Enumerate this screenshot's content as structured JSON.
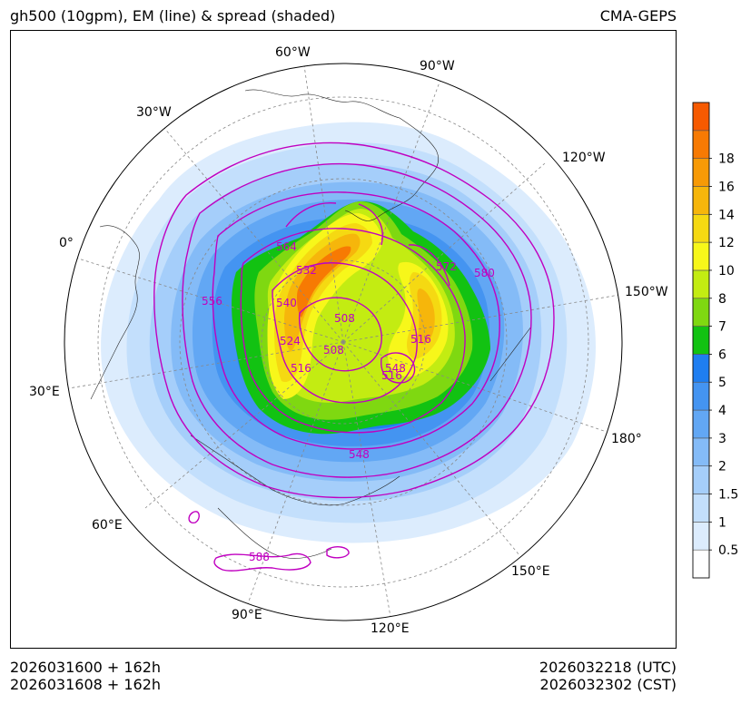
{
  "header": {
    "title": "gh500 (10gpm), EM (line) & spread (shaded)",
    "model": "CMA-GEPS"
  },
  "footer": {
    "init_utc": "2026031600 + 162h",
    "init_cst": "2026031608 + 162h",
    "valid_utc": "2026032218 (UTC)",
    "valid_cst": "2026032302 (CST)"
  },
  "map": {
    "projection": "north polar stereographic",
    "longitude_labels": [
      "60°W",
      "90°W",
      "30°W",
      "120°W",
      "0°",
      "150°W",
      "30°E",
      "180°",
      "60°E",
      "150°E",
      "90°E",
      "120°E"
    ],
    "contour_labels": [
      "564",
      "532",
      "540",
      "556",
      "508",
      "572",
      "580",
      "516",
      "524",
      "516",
      "508",
      "548",
      "516",
      "548",
      "588"
    ],
    "colors": {
      "contour": "#c000c0",
      "coast": "#222222",
      "grid": "#888888"
    }
  },
  "chart_data": {
    "type": "heatmap",
    "variable": "500 hPa geopotential height ensemble spread (10 gpm)",
    "colorbar_ticks": [
      "0.5",
      "1",
      "1.5",
      "2",
      "3",
      "4",
      "5",
      "6",
      "7",
      "8",
      "10",
      "12",
      "14",
      "16",
      "18"
    ],
    "colorbar_levels": [
      0,
      0.5,
      1,
      1.5,
      2,
      3,
      4,
      5,
      6,
      7,
      8,
      10,
      12,
      14,
      16,
      18,
      20
    ],
    "colorbar_colors": [
      "#ffffff",
      "#dcecfd",
      "#c3dffc",
      "#a5cefa",
      "#84bbf7",
      "#62a7f4",
      "#4494f1",
      "#1f7ef0",
      "#12c212",
      "#7fd811",
      "#c3ec12",
      "#f7f71a",
      "#f5d912",
      "#f6b60b",
      "#f79a06",
      "#f77a03",
      "#f65a01"
    ],
    "contour_levels_gpm10": [
      508,
      516,
      524,
      532,
      540,
      548,
      556,
      564,
      572,
      580,
      588
    ]
  }
}
